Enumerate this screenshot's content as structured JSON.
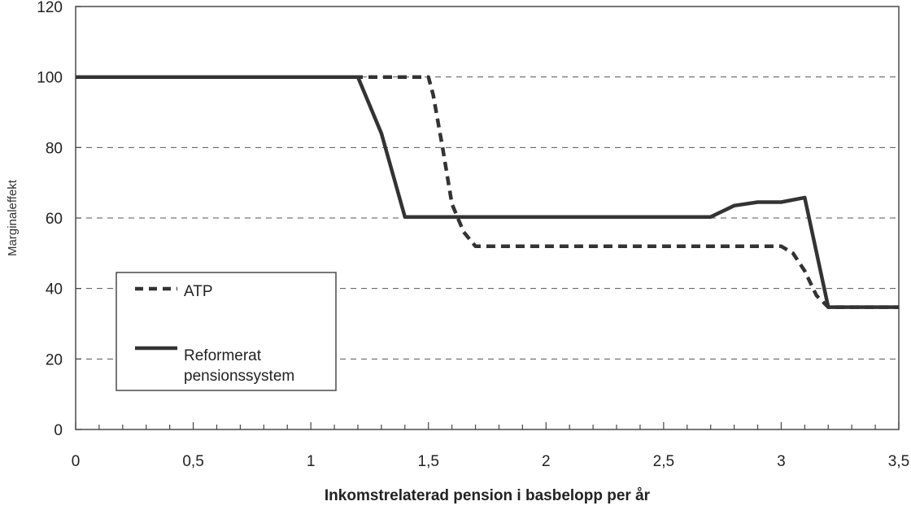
{
  "chart_data": {
    "type": "line",
    "title": "",
    "xlabel": "Inkomstrelaterad pension i basbelopp per år",
    "ylabel": "Marginaleffekt",
    "xlim": [
      0,
      3.5
    ],
    "ylim": [
      0,
      120
    ],
    "x_ticks": [
      "0",
      "0,5",
      "1",
      "1,5",
      "2",
      "2,5",
      "3",
      "3,5"
    ],
    "x_tick_values": [
      0,
      0.5,
      1,
      1.5,
      2,
      2.5,
      3,
      3.5
    ],
    "y_ticks": [
      "0",
      "20",
      "40",
      "60",
      "80",
      "100",
      "120"
    ],
    "y_tick_values": [
      0,
      20,
      40,
      60,
      80,
      100,
      120
    ],
    "grid": {
      "y": true,
      "x": false,
      "style": "dashed"
    },
    "legend": {
      "placement": "bottom-left",
      "boxed": true
    },
    "series": [
      {
        "name": "ATP",
        "style": "dashed",
        "color": "#333333",
        "points": [
          [
            0,
            100
          ],
          [
            1.2,
            100
          ],
          [
            1.5,
            100
          ],
          [
            1.52,
            95
          ],
          [
            1.56,
            80
          ],
          [
            1.6,
            64
          ],
          [
            1.65,
            56
          ],
          [
            1.7,
            52
          ],
          [
            2.7,
            52
          ],
          [
            3.0,
            52
          ],
          [
            3.05,
            50
          ],
          [
            3.1,
            45
          ],
          [
            3.15,
            38
          ],
          [
            3.2,
            34.7
          ],
          [
            3.5,
            34.7
          ]
        ]
      },
      {
        "name": "Reformerat pensionssystem",
        "style": "solid",
        "color": "#333333",
        "points": [
          [
            0,
            100
          ],
          [
            1.2,
            100
          ],
          [
            1.3,
            84
          ],
          [
            1.4,
            60.3
          ],
          [
            2.7,
            60.3
          ],
          [
            2.8,
            63.5
          ],
          [
            2.9,
            64.5
          ],
          [
            3.0,
            64.5
          ],
          [
            3.1,
            65.8
          ],
          [
            3.2,
            34.7
          ],
          [
            3.5,
            34.7
          ]
        ]
      }
    ],
    "legend_entries": [
      {
        "label": "ATP",
        "style": "dashed"
      },
      {
        "label_lines": [
          "Reformerat",
          "pensionssystem"
        ],
        "style": "solid"
      }
    ]
  }
}
